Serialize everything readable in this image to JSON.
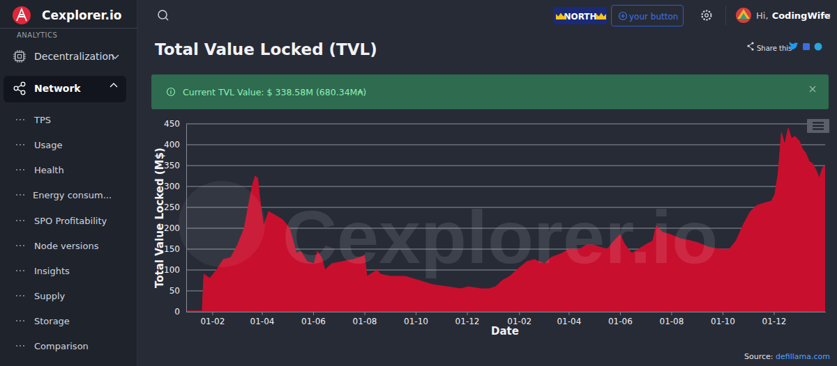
{
  "header": {
    "logo": "Cexplorer.io",
    "badge": "NORTH",
    "button": "your button",
    "greeting": "Hi,",
    "user": "CodingWife"
  },
  "sidebar": {
    "section": "ANALYTICS",
    "menu": [
      "Decentralization",
      "Network"
    ],
    "items": [
      "TPS",
      "Usage",
      "Health",
      "Energy consum...",
      "SPO Profitability",
      "Node versions",
      "Insights",
      "Supply",
      "Storage",
      "Comparison"
    ]
  },
  "page": {
    "share": "Share this",
    "alert": "Current TVL Value: $ 338.58M (680.34M₳)",
    "watermark": "Cexplorer.io"
  },
  "source": {
    "label": "Source:",
    "link": "defillama.com"
  },
  "chart_data": {
    "type": "area",
    "title": "Total Value Locked (TVL)",
    "x_label": "Date",
    "y_label": "Total Value Locked (M$)",
    "color": "#c8102e",
    "grid": true,
    "x": [
      0,
      19,
      21,
      28,
      36,
      44,
      53,
      61,
      69,
      74,
      79,
      82,
      85,
      87,
      92,
      98,
      107,
      115,
      123,
      127,
      131,
      136,
      144,
      152,
      156,
      161,
      165,
      173,
      185,
      198,
      206,
      212,
      215,
      227,
      231,
      243,
      260,
      277,
      293,
      310,
      327,
      335,
      351,
      360,
      368,
      376,
      385,
      393,
      405,
      414,
      426,
      434,
      447,
      455,
      468,
      476,
      484,
      492,
      501,
      509,
      516,
      522,
      530,
      538,
      546,
      555,
      559,
      567,
      576,
      588,
      600,
      609,
      621,
      634,
      646,
      654,
      663,
      671,
      679,
      687,
      696,
      700,
      704,
      708,
      712,
      716,
      720,
      724,
      729,
      733,
      737,
      741,
      745,
      749,
      753,
      757,
      760
    ],
    "values": [
      2,
      2,
      90,
      80,
      100,
      125,
      130,
      160,
      200,
      255,
      305,
      325,
      320,
      280,
      205,
      240,
      230,
      220,
      200,
      170,
      140,
      145,
      120,
      115,
      145,
      130,
      100,
      115,
      120,
      125,
      130,
      135,
      85,
      100,
      90,
      85,
      85,
      75,
      65,
      60,
      55,
      60,
      55,
      55,
      60,
      75,
      85,
      100,
      120,
      125,
      115,
      130,
      140,
      150,
      150,
      160,
      160,
      155,
      150,
      170,
      185,
      160,
      140,
      150,
      160,
      170,
      205,
      190,
      185,
      175,
      170,
      165,
      155,
      150,
      150,
      170,
      210,
      240,
      255,
      260,
      265,
      280,
      330,
      430,
      400,
      440,
      415,
      420,
      410,
      390,
      380,
      360,
      355,
      340,
      320,
      345,
      350
    ],
    "xlim": [
      0,
      760
    ],
    "xticks": [
      {
        "value": 31,
        "label": "01-02"
      },
      {
        "value": 90,
        "label": "01-04"
      },
      {
        "value": 151,
        "label": "01-06"
      },
      {
        "value": 212,
        "label": "01-08"
      },
      {
        "value": 273,
        "label": "01-10"
      },
      {
        "value": 334,
        "label": "01-12"
      },
      {
        "value": 396,
        "label": "01-02"
      },
      {
        "value": 455,
        "label": "01-04"
      },
      {
        "value": 516,
        "label": "01-06"
      },
      {
        "value": 577,
        "label": "01-08"
      },
      {
        "value": 638,
        "label": "01-10"
      },
      {
        "value": 699,
        "label": "01-12"
      }
    ],
    "ylim": [
      0,
      450
    ],
    "yticks": [
      0,
      50,
      100,
      150,
      200,
      250,
      300,
      350,
      400,
      450
    ]
  }
}
